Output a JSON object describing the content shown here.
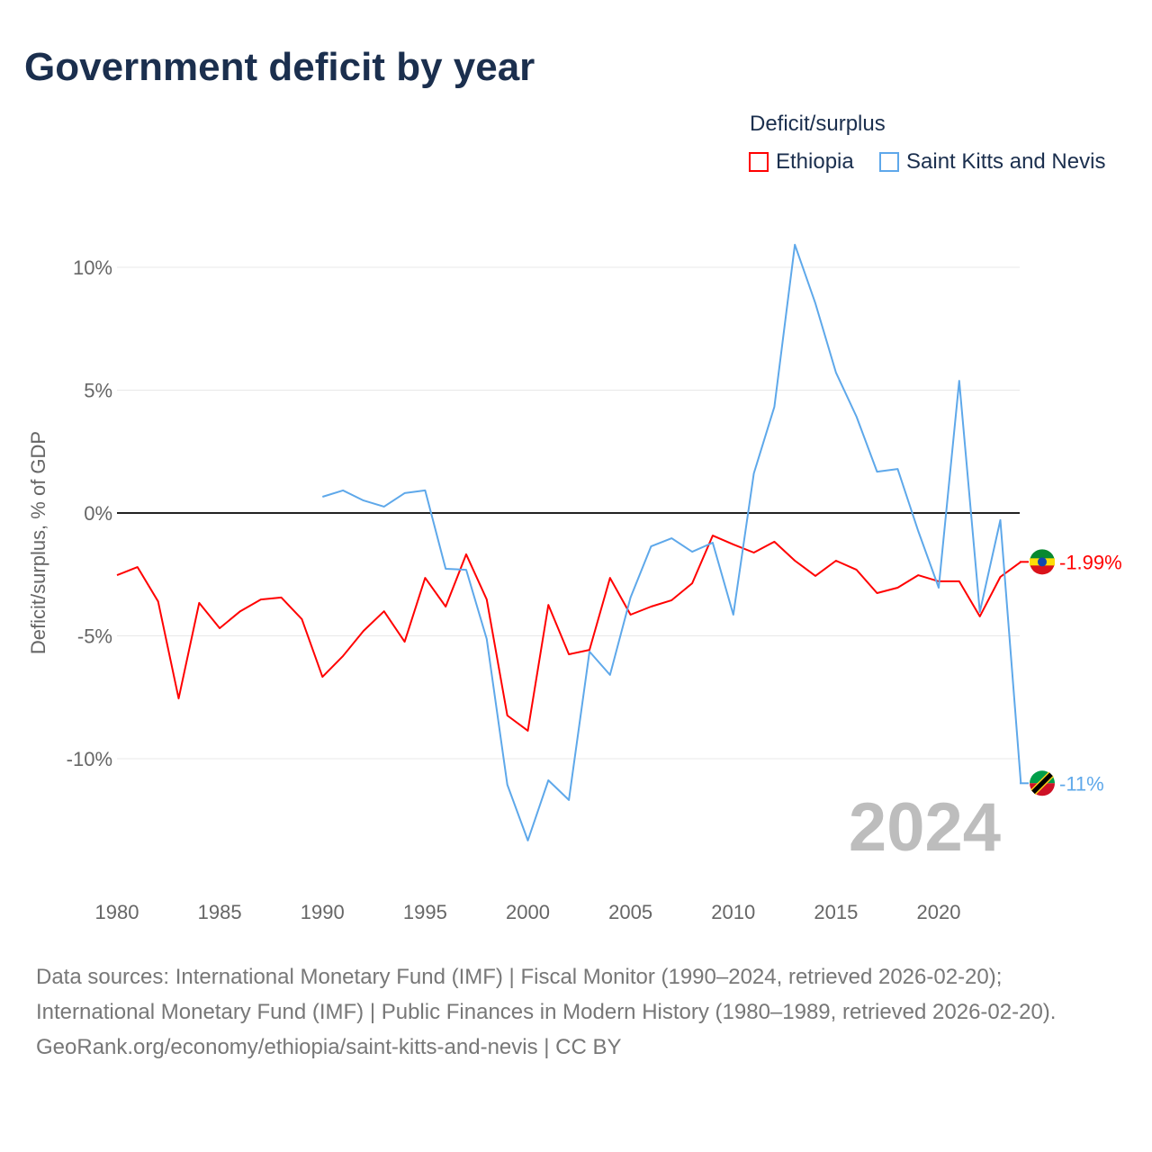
{
  "title": "Government deficit by year",
  "legend": {
    "title": "Deficit/surplus"
  },
  "source_text": "Data sources: International Monetary Fund (IMF) | Fiscal Monitor (1990–2024, retrieved 2026-02-20); International Monetary Fund (IMF) | Public Finances in Modern History (1980–1989, retrieved 2026-02-20).",
  "credit": "GeoRank.org/economy/ethiopia/saint-kitts-and-nevis | CC BY",
  "chart_data": {
    "type": "line",
    "title": "Government deficit by year",
    "xlabel": "",
    "ylabel": "Deficit/surplus, % of GDP",
    "xlim": [
      1980,
      2024
    ],
    "ylim": [
      -14.5,
      12
    ],
    "yticks": [
      10,
      5,
      0,
      -5,
      -10
    ],
    "ytick_labels": [
      "10%",
      "5%",
      "0%",
      "-5%",
      "-10%"
    ],
    "xticks": [
      1980,
      1985,
      1990,
      1995,
      2000,
      2005,
      2010,
      2015,
      2020
    ],
    "xtick_labels": [
      "1980",
      "1985",
      "1990",
      "1995",
      "2000",
      "2005",
      "2010",
      "2015",
      "2020"
    ],
    "year_label": "2024",
    "legend_position": "top-right",
    "series": [
      {
        "name": "Ethiopia",
        "color": "#ff0000",
        "end_label": "-1.99%",
        "start": 1980,
        "values": [
          -2.53,
          -2.2,
          -3.6,
          -7.55,
          -3.66,
          -4.69,
          -4.0,
          -3.52,
          -3.44,
          -4.32,
          -6.67,
          -5.82,
          -4.8,
          -4.0,
          -5.24,
          -2.64,
          -3.81,
          -1.68,
          -3.52,
          -8.24,
          -8.86,
          -3.74,
          -5.75,
          -5.57,
          -2.64,
          -4.14,
          -3.81,
          -3.55,
          -2.86,
          -0.92,
          -1.28,
          -1.61,
          -1.17,
          -1.94,
          -2.56,
          -1.94,
          -2.31,
          -3.26,
          -3.04,
          -2.53,
          -2.78,
          -2.78,
          -4.21,
          -2.6,
          -1.99
        ]
      },
      {
        "name": "Saint Kitts and Nevis",
        "color": "#5ea8ea",
        "end_label": "-11%",
        "start": 1990,
        "values": [
          0.66,
          0.92,
          0.51,
          0.26,
          0.81,
          0.92,
          -2.27,
          -2.31,
          -5.13,
          -11.06,
          -13.33,
          -10.88,
          -11.68,
          -5.64,
          -6.59,
          -3.44,
          -1.36,
          -1.03,
          -1.58,
          -1.21,
          -4.14,
          1.61,
          4.32,
          10.92,
          8.53,
          5.71,
          3.92,
          1.68,
          1.79,
          -0.73,
          -3.04,
          5.38,
          -4.03,
          -0.29,
          -11.0
        ]
      }
    ]
  }
}
